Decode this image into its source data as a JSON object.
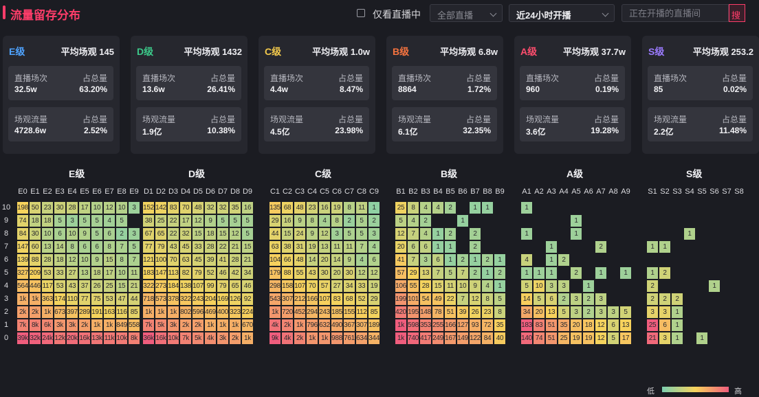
{
  "header": {
    "title": "流量留存分布",
    "only_live_label": "仅看直播中",
    "select_all_live": "全部直播",
    "select_time": "近24小时开播",
    "search_placeholder": "正在开播的直播间",
    "search_button": "搜"
  },
  "colors": {
    "low": "#7ccfb0",
    "mid": "#f7d35c",
    "high": "#f05d7d",
    "accent": "#ff3d6a"
  },
  "cards": [
    {
      "level": "E级",
      "color": "#4fa3ff",
      "avg_label": "平均场观",
      "avg_value": "145",
      "sessions_label": "直播场次",
      "sessions_value": "32.5w",
      "sessions_share_label": "占总量",
      "sessions_share": "63.20%",
      "traffic_label": "场观流量",
      "traffic_value": "4728.6w",
      "traffic_share_label": "占总量",
      "traffic_share": "2.52%"
    },
    {
      "level": "D级",
      "color": "#3cc98a",
      "avg_label": "平均场观",
      "avg_value": "1432",
      "sessions_label": "直播场次",
      "sessions_value": "13.6w",
      "sessions_share_label": "占总量",
      "sessions_share": "26.41%",
      "traffic_label": "场观流量",
      "traffic_value": "1.9亿",
      "traffic_share_label": "占总量",
      "traffic_share": "10.38%"
    },
    {
      "level": "C级",
      "color": "#f2c94c",
      "avg_label": "平均场观",
      "avg_value": "1.0w",
      "sessions_label": "直播场次",
      "sessions_value": "4.4w",
      "sessions_share_label": "占总量",
      "sessions_share": "8.47%",
      "traffic_label": "场观流量",
      "traffic_value": "4.5亿",
      "traffic_share_label": "占总量",
      "traffic_share": "23.98%"
    },
    {
      "level": "B级",
      "color": "#f5733f",
      "avg_label": "平均场观",
      "avg_value": "6.8w",
      "sessions_label": "直播场次",
      "sessions_value": "8864",
      "sessions_share_label": "占总量",
      "sessions_share": "1.72%",
      "traffic_label": "场观流量",
      "traffic_value": "6.1亿",
      "traffic_share_label": "占总量",
      "traffic_share": "32.35%"
    },
    {
      "level": "A级",
      "color": "#ff4d6d",
      "avg_label": "平均场观",
      "avg_value": "37.7w",
      "sessions_label": "直播场次",
      "sessions_value": "960",
      "sessions_share_label": "占总量",
      "sessions_share": "0.19%",
      "traffic_label": "场观流量",
      "traffic_value": "3.6亿",
      "traffic_share_label": "占总量",
      "traffic_share": "19.28%"
    },
    {
      "level": "S级",
      "color": "#9b7bff",
      "avg_label": "平均场观",
      "avg_value": "253.2",
      "sessions_label": "直播场次",
      "sessions_value": "85",
      "sessions_share_label": "占总量",
      "sessions_share": "0.02%",
      "traffic_label": "场观流量",
      "traffic_value": "2.2亿",
      "traffic_share_label": "占总量",
      "traffic_share": "11.48%"
    }
  ],
  "chart_data": {
    "type": "heatmap",
    "rows": [
      "10",
      "9",
      "8",
      "7",
      "6",
      "5",
      "4",
      "3",
      "2",
      "1",
      "0"
    ],
    "legend": {
      "low": "低",
      "high": "高"
    },
    "groups": [
      {
        "title": "E级",
        "columns": [
          "E0",
          "E1",
          "E2",
          "E3",
          "E4",
          "E5",
          "E6",
          "E7",
          "E8",
          "E9"
        ],
        "cells": [
          [
            "198",
            "50",
            "23",
            "30",
            "28",
            "17",
            "10",
            "12",
            "10",
            "3"
          ],
          [
            "74",
            "18",
            "18",
            "5",
            "3",
            "5",
            "5",
            "4",
            "5",
            ""
          ],
          [
            "84",
            "30",
            "10",
            "6",
            "10",
            "9",
            "5",
            "6",
            "2",
            "3"
          ],
          [
            "147",
            "60",
            "13",
            "14",
            "8",
            "6",
            "6",
            "8",
            "7",
            "5"
          ],
          [
            "139",
            "88",
            "28",
            "18",
            "12",
            "10",
            "9",
            "15",
            "8",
            "7"
          ],
          [
            "327",
            "209",
            "53",
            "33",
            "27",
            "13",
            "18",
            "17",
            "10",
            "11"
          ],
          [
            "564",
            "446",
            "117",
            "53",
            "43",
            "37",
            "26",
            "25",
            "15",
            "21"
          ],
          [
            "1k",
            "1k",
            "363",
            "174",
            "110",
            "77",
            "75",
            "53",
            "47",
            "44"
          ],
          [
            "2k",
            "2k",
            "1k",
            "673",
            "397",
            "289",
            "191",
            "163",
            "116",
            "85"
          ],
          [
            "7k",
            "8k",
            "6k",
            "3k",
            "3k",
            "2k",
            "1k",
            "1k",
            "849",
            "558"
          ],
          [
            "39k",
            "32k",
            "24k",
            "12k",
            "20k",
            "16k",
            "13k",
            "11k",
            "10k",
            "8k"
          ]
        ]
      },
      {
        "title": "D级",
        "columns": [
          "D1",
          "D2",
          "D3",
          "D4",
          "D5",
          "D6",
          "D7",
          "D8",
          "D9"
        ],
        "cells": [
          [
            "152",
            "142",
            "83",
            "70",
            "48",
            "32",
            "32",
            "35",
            "16"
          ],
          [
            "38",
            "25",
            "22",
            "17",
            "12",
            "9",
            "5",
            "5",
            "5"
          ],
          [
            "67",
            "65",
            "22",
            "32",
            "15",
            "18",
            "15",
            "12",
            "5"
          ],
          [
            "77",
            "79",
            "43",
            "45",
            "33",
            "28",
            "22",
            "21",
            "15"
          ],
          [
            "121",
            "100",
            "70",
            "63",
            "45",
            "39",
            "41",
            "28",
            "21"
          ],
          [
            "183",
            "147",
            "113",
            "82",
            "79",
            "52",
            "46",
            "42",
            "34"
          ],
          [
            "322",
            "273",
            "184",
            "138",
            "107",
            "99",
            "79",
            "65",
            "46"
          ],
          [
            "718",
            "573",
            "378",
            "322",
            "243",
            "204",
            "169",
            "126",
            "92"
          ],
          [
            "1k",
            "1k",
            "1k",
            "802",
            "596",
            "469",
            "400",
            "323",
            "224"
          ],
          [
            "7k",
            "5k",
            "3k",
            "2k",
            "2k",
            "1k",
            "1k",
            "1k",
            "670"
          ],
          [
            "36k",
            "16k",
            "10k",
            "7k",
            "5k",
            "4k",
            "3k",
            "2k",
            "1k"
          ]
        ]
      },
      {
        "title": "C级",
        "columns": [
          "C1",
          "C2",
          "C3",
          "C4",
          "C5",
          "C6",
          "C7",
          "C8",
          "C9"
        ],
        "cells": [
          [
            "135",
            "68",
            "48",
            "23",
            "16",
            "19",
            "8",
            "11",
            "1"
          ],
          [
            "29",
            "16",
            "9",
            "8",
            "4",
            "8",
            "2",
            "5",
            "2"
          ],
          [
            "44",
            "15",
            "24",
            "9",
            "12",
            "3",
            "5",
            "5",
            "3"
          ],
          [
            "63",
            "38",
            "31",
            "19",
            "13",
            "11",
            "11",
            "7",
            "4"
          ],
          [
            "104",
            "66",
            "48",
            "14",
            "20",
            "14",
            "9",
            "4",
            "6"
          ],
          [
            "179",
            "88",
            "55",
            "43",
            "30",
            "20",
            "30",
            "12",
            "12"
          ],
          [
            "298",
            "158",
            "107",
            "70",
            "57",
            "27",
            "34",
            "33",
            "19"
          ],
          [
            "543",
            "307",
            "212",
            "166",
            "107",
            "83",
            "68",
            "52",
            "29"
          ],
          [
            "1k",
            "720",
            "452",
            "294",
            "243",
            "185",
            "155",
            "112",
            "85"
          ],
          [
            "4k",
            "2k",
            "1k",
            "796",
            "632",
            "490",
            "367",
            "307",
            "189"
          ],
          [
            "9k",
            "4k",
            "2k",
            "1k",
            "1k",
            "988",
            "761",
            "634",
            "344"
          ]
        ]
      },
      {
        "title": "B级",
        "columns": [
          "B1",
          "B2",
          "B3",
          "B4",
          "B5",
          "B6",
          "B7",
          "B8",
          "B9"
        ],
        "cells": [
          [
            "25",
            "8",
            "4",
            "4",
            "2",
            "",
            "1",
            "1",
            ""
          ],
          [
            "5",
            "4",
            "2",
            "",
            "",
            "1",
            "",
            "",
            ""
          ],
          [
            "12",
            "7",
            "4",
            "1",
            "2",
            "",
            "2",
            "",
            ""
          ],
          [
            "20",
            "6",
            "6",
            "1",
            "1",
            "",
            "2",
            "",
            ""
          ],
          [
            "41",
            "7",
            "3",
            "6",
            "1",
            "2",
            "1",
            "2",
            "1"
          ],
          [
            "57",
            "29",
            "13",
            "7",
            "5",
            "7",
            "2",
            "1",
            "2"
          ],
          [
            "106",
            "55",
            "28",
            "15",
            "11",
            "10",
            "9",
            "4",
            "1"
          ],
          [
            "199",
            "101",
            "54",
            "49",
            "22",
            "7",
            "12",
            "8",
            "5"
          ],
          [
            "420",
            "195",
            "148",
            "78",
            "51",
            "39",
            "26",
            "23",
            "8"
          ],
          [
            "1k",
            "598",
            "353",
            "255",
            "166",
            "127",
            "93",
            "72",
            "35"
          ],
          [
            "1k",
            "740",
            "417",
            "249",
            "167",
            "149",
            "122",
            "84",
            "40"
          ]
        ]
      },
      {
        "title": "A级",
        "columns": [
          "A1",
          "A2",
          "A3",
          "A4",
          "A5",
          "A6",
          "A7",
          "A8",
          "A9"
        ],
        "cells": [
          [
            "1",
            "",
            "",
            "",
            "",
            "",
            "",
            "",
            ""
          ],
          [
            "",
            "",
            "",
            "",
            "1",
            "",
            "",
            "",
            ""
          ],
          [
            "1",
            "",
            "",
            "",
            "1",
            "",
            "",
            "",
            ""
          ],
          [
            "",
            "",
            "1",
            "",
            "",
            "",
            "2",
            "",
            ""
          ],
          [
            "4",
            "",
            "1",
            "2",
            "",
            "",
            "",
            "",
            ""
          ],
          [
            "1",
            "1",
            "1",
            "",
            "2",
            "",
            "1",
            "",
            "1"
          ],
          [
            "5",
            "10",
            "3",
            "3",
            "",
            "1",
            "",
            "",
            ""
          ],
          [
            "14",
            "5",
            "6",
            "2",
            "3",
            "2",
            "3",
            "",
            ""
          ],
          [
            "34",
            "20",
            "13",
            "5",
            "3",
            "2",
            "3",
            "3",
            "5"
          ],
          [
            "183",
            "83",
            "51",
            "35",
            "20",
            "18",
            "12",
            "6",
            "13"
          ],
          [
            "140",
            "74",
            "51",
            "25",
            "19",
            "19",
            "12",
            "5",
            "17"
          ]
        ]
      },
      {
        "title": "S级",
        "columns": [
          "S1",
          "S2",
          "S3",
          "S4",
          "S5",
          "S6",
          "S7",
          "S8"
        ],
        "cells": [
          [
            "",
            "",
            "",
            "",
            "",
            "",
            "",
            ""
          ],
          [
            "",
            "",
            "",
            "",
            "",
            "",
            "",
            ""
          ],
          [
            "",
            "",
            "",
            "1",
            "",
            "",
            "",
            ""
          ],
          [
            "1",
            "1",
            "",
            "",
            "",
            "",
            "",
            ""
          ],
          [
            "",
            "",
            "",
            "",
            "",
            "",
            "",
            ""
          ],
          [
            "1",
            "2",
            "",
            "",
            "",
            "",
            "",
            ""
          ],
          [
            "2",
            "",
            "",
            "",
            "",
            "1",
            "",
            ""
          ],
          [
            "2",
            "2",
            "2",
            "",
            "",
            "",
            "",
            ""
          ],
          [
            "3",
            "3",
            "1",
            "",
            "",
            "",
            "",
            ""
          ],
          [
            "25",
            "6",
            "1",
            "",
            "",
            "",
            "",
            ""
          ],
          [
            "21",
            "3",
            "1",
            "",
            "1",
            "",
            "",
            ""
          ]
        ]
      }
    ]
  }
}
